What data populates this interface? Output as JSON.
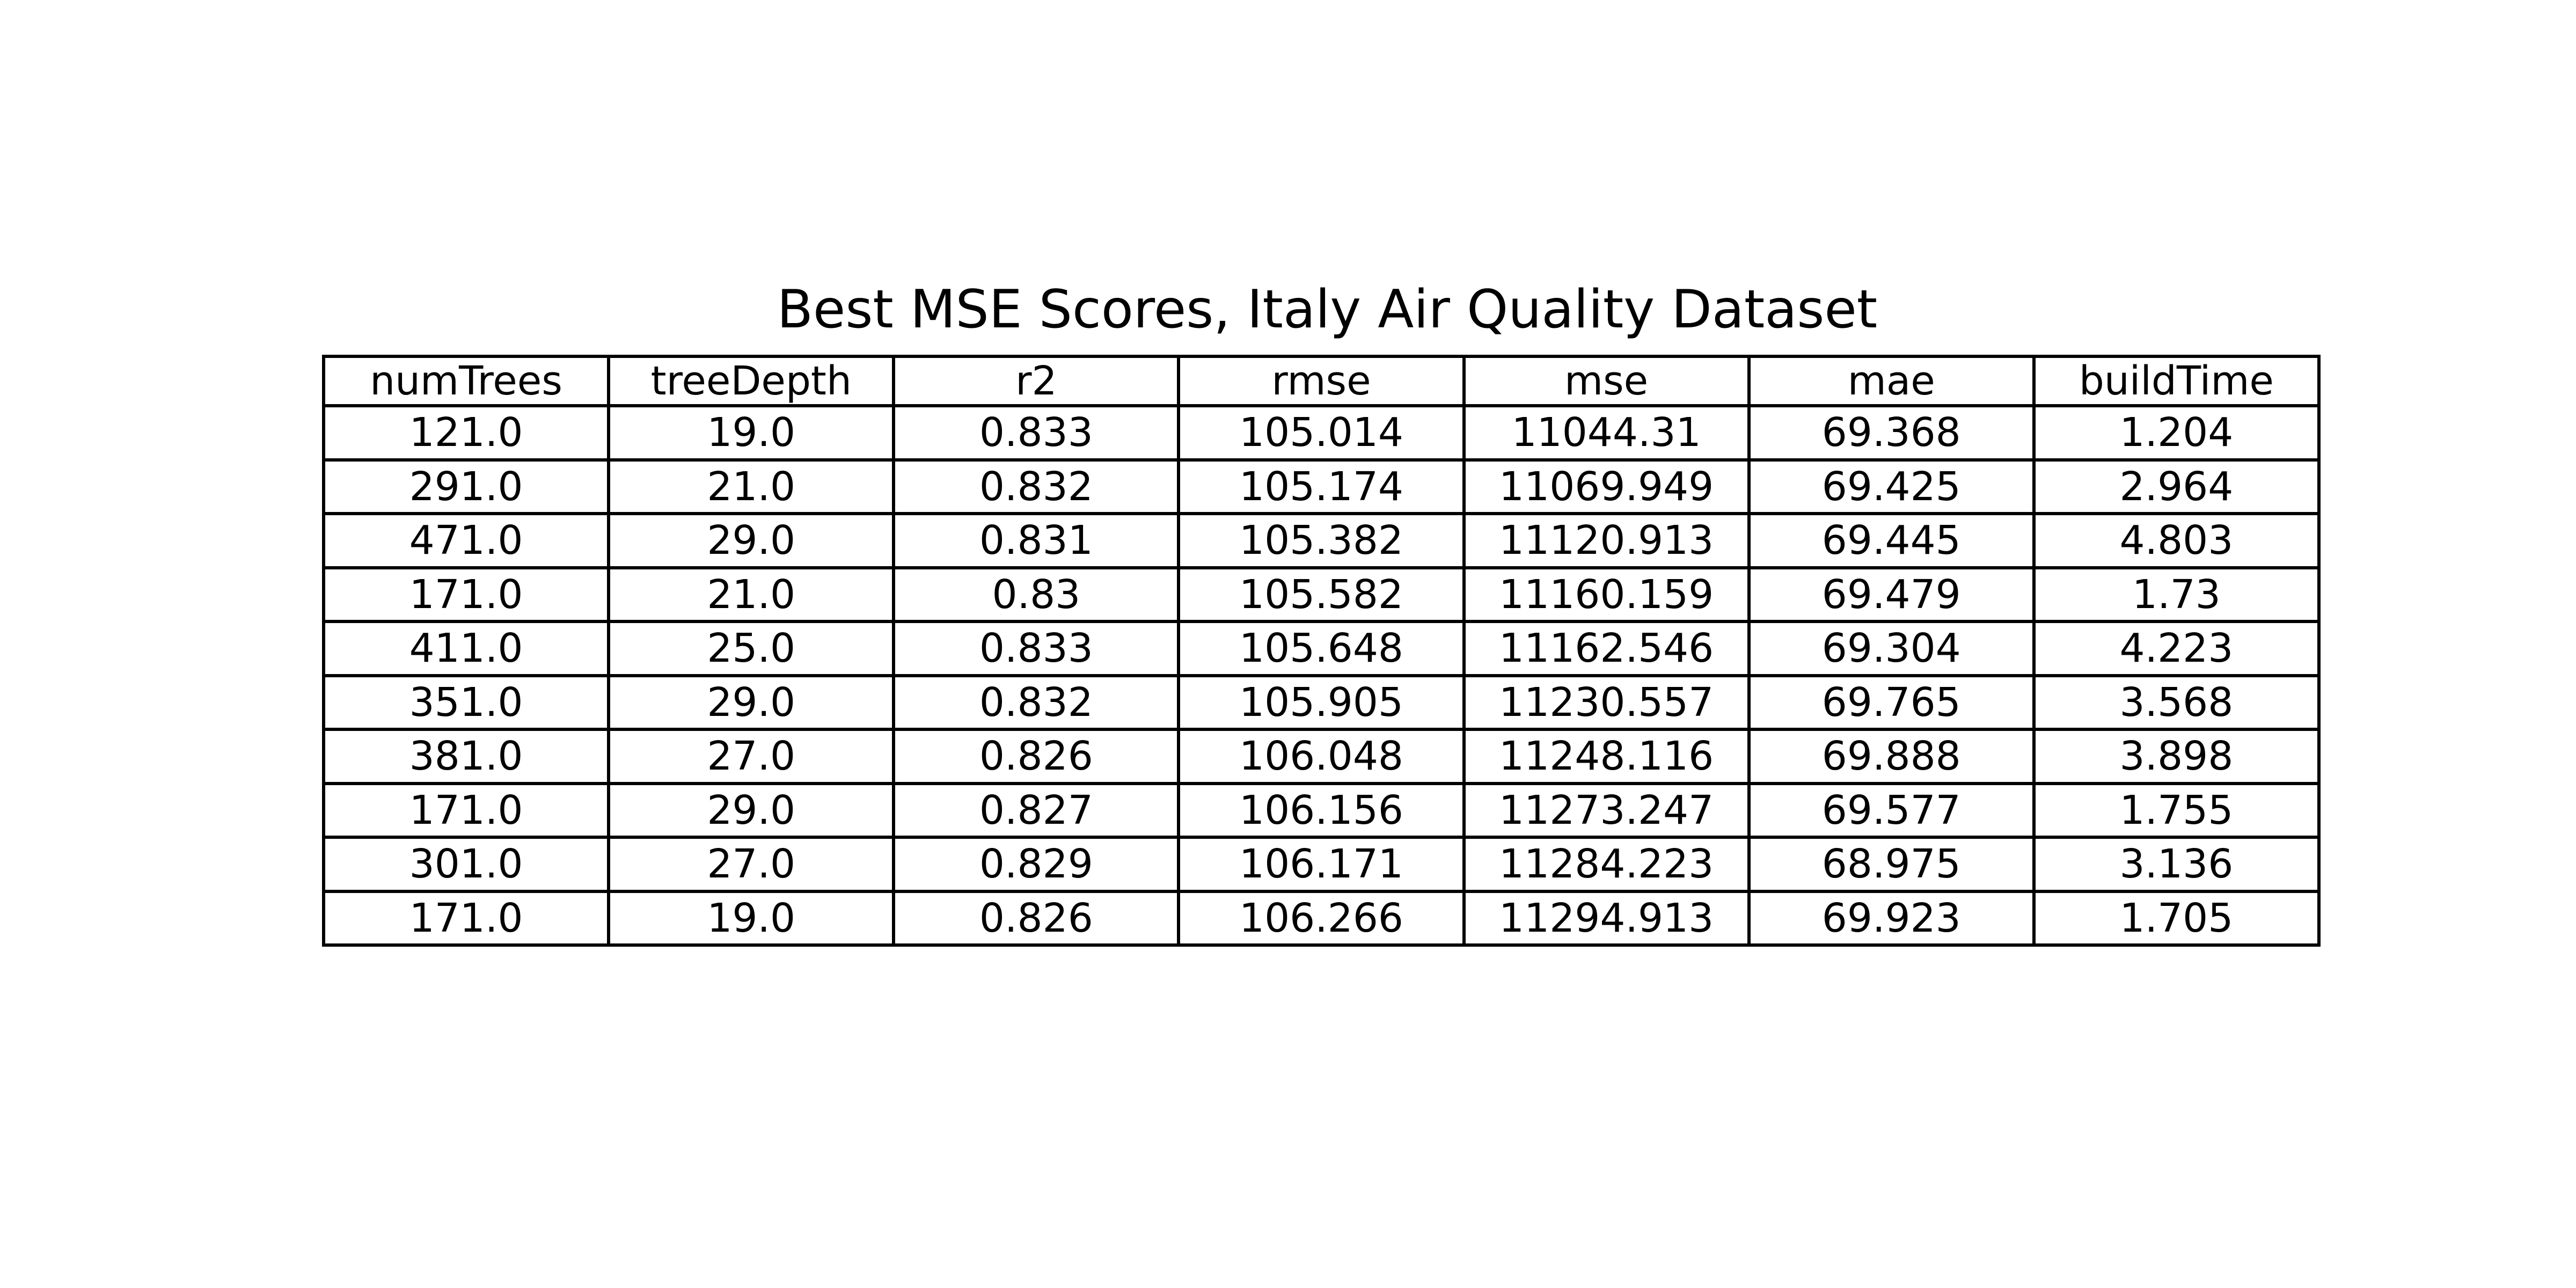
{
  "chart_data": {
    "type": "table",
    "title": "Best MSE Scores, Italy Air Quality Dataset",
    "columns": [
      "numTrees",
      "treeDepth",
      "r2",
      "rmse",
      "mse",
      "mae",
      "buildTime"
    ],
    "rows": [
      [
        "121.0",
        "19.0",
        "0.833",
        "105.014",
        "11044.31",
        "69.368",
        "1.204"
      ],
      [
        "291.0",
        "21.0",
        "0.832",
        "105.174",
        "11069.949",
        "69.425",
        "2.964"
      ],
      [
        "471.0",
        "29.0",
        "0.831",
        "105.382",
        "11120.913",
        "69.445",
        "4.803"
      ],
      [
        "171.0",
        "21.0",
        "0.83",
        "105.582",
        "11160.159",
        "69.479",
        "1.73"
      ],
      [
        "411.0",
        "25.0",
        "0.833",
        "105.648",
        "11162.546",
        "69.304",
        "4.223"
      ],
      [
        "351.0",
        "29.0",
        "0.832",
        "105.905",
        "11230.557",
        "69.765",
        "3.568"
      ],
      [
        "381.0",
        "27.0",
        "0.826",
        "106.048",
        "11248.116",
        "69.888",
        "3.898"
      ],
      [
        "171.0",
        "29.0",
        "0.827",
        "106.156",
        "11273.247",
        "69.577",
        "1.755"
      ],
      [
        "301.0",
        "27.0",
        "0.829",
        "106.171",
        "11284.223",
        "68.975",
        "3.136"
      ],
      [
        "171.0",
        "19.0",
        "0.826",
        "106.266",
        "11294.913",
        "69.923",
        "1.705"
      ]
    ]
  }
}
